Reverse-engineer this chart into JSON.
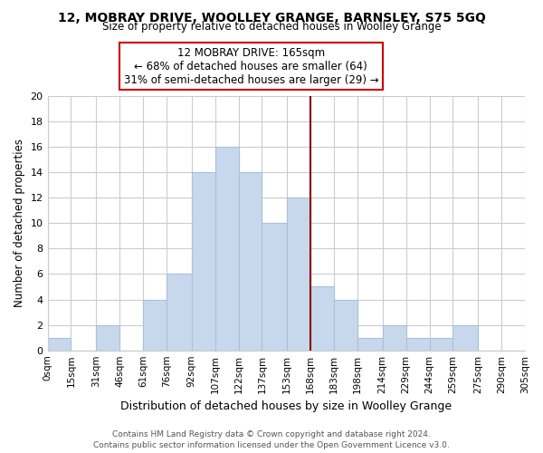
{
  "title": "12, MOBRAY DRIVE, WOOLLEY GRANGE, BARNSLEY, S75 5GQ",
  "subtitle": "Size of property relative to detached houses in Woolley Grange",
  "xlabel": "Distribution of detached houses by size in Woolley Grange",
  "ylabel": "Number of detached properties",
  "bin_edges": [
    0,
    15,
    31,
    46,
    61,
    76,
    92,
    107,
    122,
    137,
    153,
    168,
    183,
    198,
    214,
    229,
    244,
    259,
    275,
    290,
    305
  ],
  "bin_labels": [
    "0sqm",
    "15sqm",
    "31sqm",
    "46sqm",
    "61sqm",
    "76sqm",
    "92sqm",
    "107sqm",
    "122sqm",
    "137sqm",
    "153sqm",
    "168sqm",
    "183sqm",
    "198sqm",
    "214sqm",
    "229sqm",
    "244sqm",
    "259sqm",
    "275sqm",
    "290sqm",
    "305sqm"
  ],
  "counts": [
    1,
    0,
    2,
    0,
    4,
    6,
    14,
    16,
    14,
    10,
    12,
    5,
    4,
    1,
    2,
    1,
    1,
    2,
    0,
    0
  ],
  "bar_color": "#c8d8ec",
  "bar_edge_color": "#a8c0e0",
  "reference_line_x": 168,
  "reference_line_color": "#8b0000",
  "annotation_title": "12 MOBRAY DRIVE: 165sqm",
  "annotation_line1": "← 68% of detached houses are smaller (64)",
  "annotation_line2": "31% of semi-detached houses are larger (29) →",
  "annotation_box_color": "white",
  "annotation_box_edge_color": "#cc0000",
  "ylim": [
    0,
    20
  ],
  "yticks": [
    0,
    2,
    4,
    6,
    8,
    10,
    12,
    14,
    16,
    18,
    20
  ],
  "grid_color": "#cccccc",
  "background_color": "white",
  "footer_line1": "Contains HM Land Registry data © Crown copyright and database right 2024.",
  "footer_line2": "Contains public sector information licensed under the Open Government Licence v3.0."
}
